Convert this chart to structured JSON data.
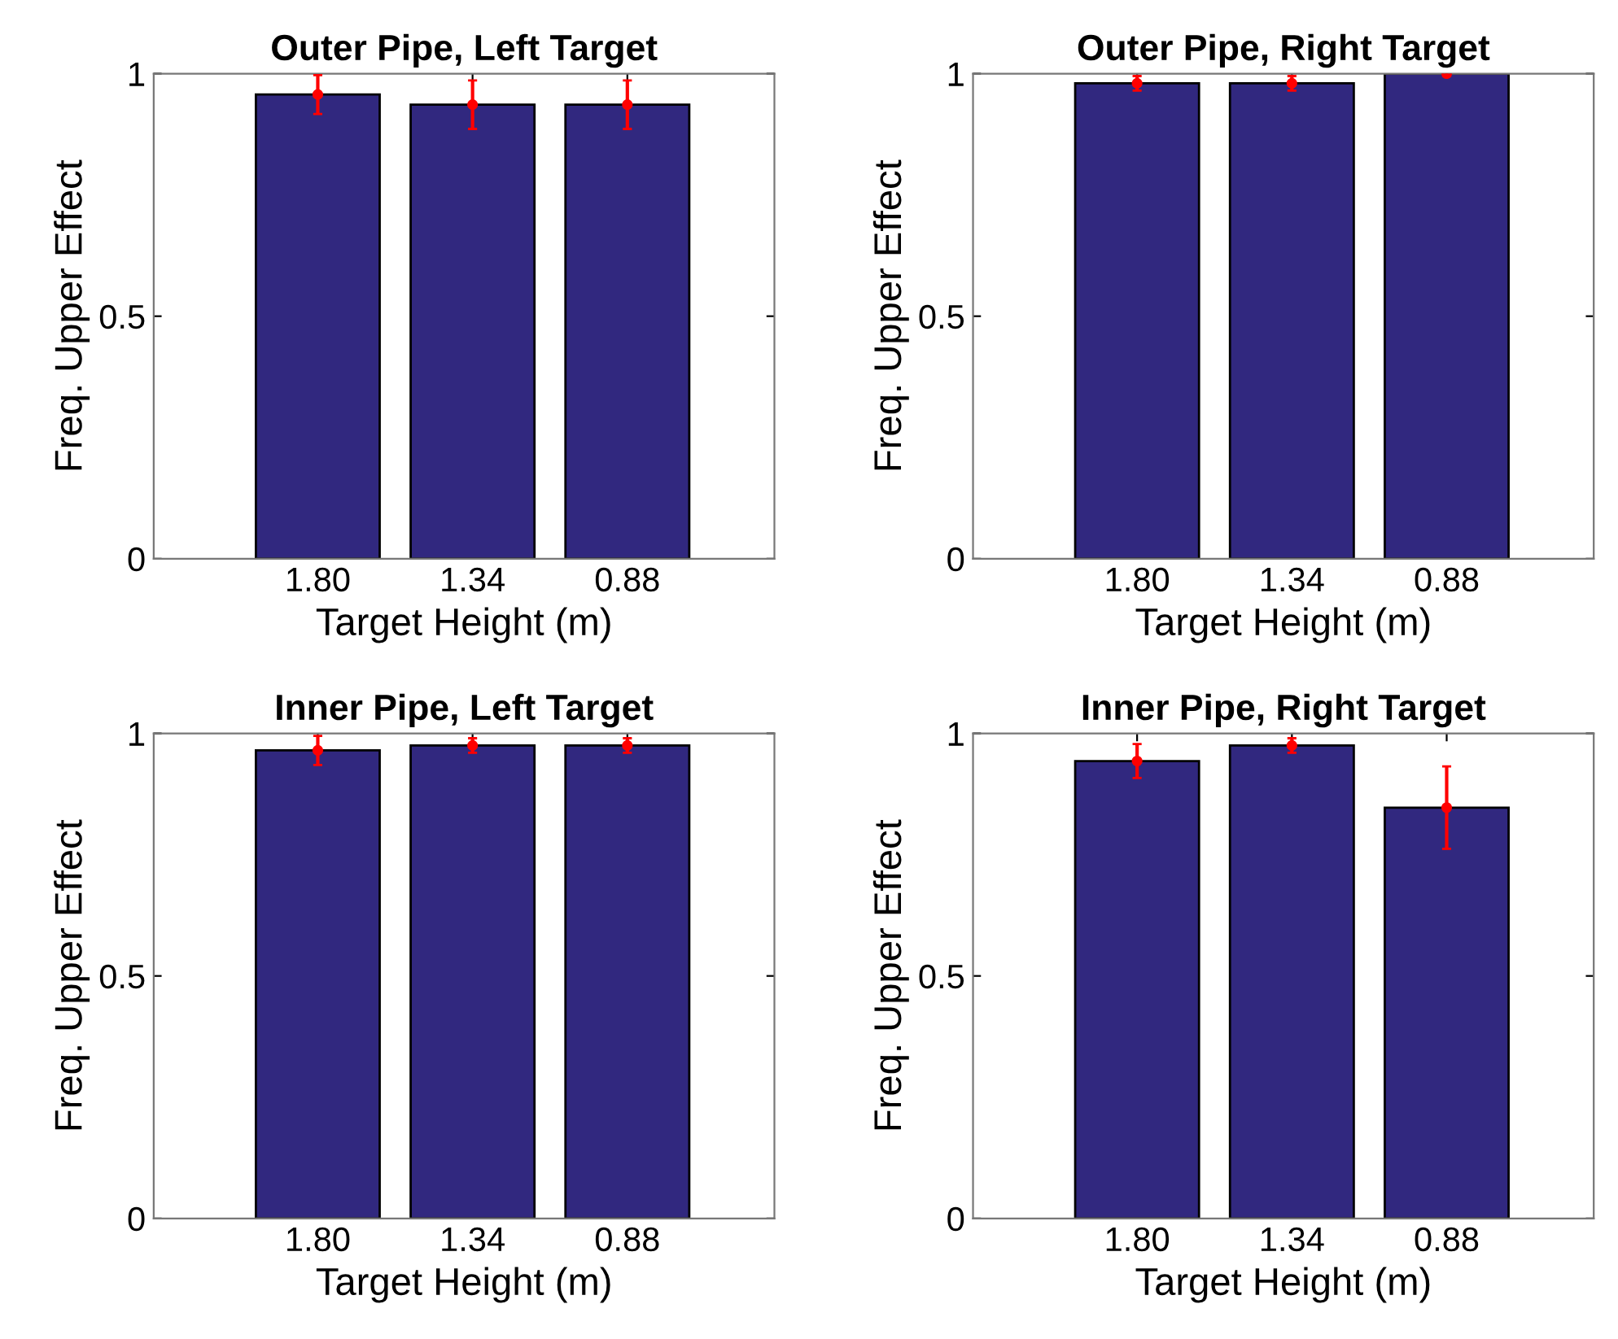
{
  "chart_data": [
    {
      "type": "bar",
      "title": "Outer Pipe, Left Target",
      "xlabel": "Target Height (m)",
      "ylabel": "Freq. Upper Effect",
      "categories": [
        "1.80",
        "1.34",
        "0.88"
      ],
      "ylim": [
        0,
        1
      ],
      "yticks": [
        0,
        0.5,
        1
      ],
      "grid": false,
      "series": [
        {
          "color": "#31287f",
          "values": [
            0.957,
            0.936,
            0.936
          ],
          "errors": [
            0.04,
            0.05,
            0.05
          ]
        },
        {
          "type": "scatter",
          "color": "#ff0000",
          "x": [
            "1.80",
            "1.34",
            "0.88"
          ],
          "values": [
            0.957,
            0.936,
            0.936
          ]
        }
      ]
    },
    {
      "type": "bar",
      "title": "Outer Pipe, Right Target",
      "xlabel": "Target Height (m)",
      "ylabel": "Freq. Upper Effect",
      "categories": [
        "1.80",
        "1.34",
        "0.88"
      ],
      "ylim": [
        0,
        1
      ],
      "yticks": [
        0,
        0.5,
        1
      ],
      "grid": false,
      "series": [
        {
          "color": "#31287f",
          "values": [
            0.98,
            0.98,
            1.0
          ],
          "errors": [
            0.015,
            0.015,
            0.005
          ]
        },
        {
          "type": "scatter",
          "color": "#ff0000",
          "x": [
            "1.80",
            "1.34",
            "0.88"
          ],
          "values": [
            0.98,
            0.98,
            1.0
          ]
        }
      ]
    },
    {
      "type": "bar",
      "title": "Inner Pipe, Left Target",
      "xlabel": "Target Height (m)",
      "ylabel": "Freq. Upper Effect",
      "categories": [
        "1.80",
        "1.34",
        "0.88"
      ],
      "ylim": [
        0,
        1
      ],
      "yticks": [
        0,
        0.5,
        1
      ],
      "grid": false,
      "series": [
        {
          "color": "#31287f",
          "values": [
            0.965,
            0.975,
            0.975
          ],
          "errors": [
            0.03,
            0.015,
            0.015
          ]
        },
        {
          "type": "scatter",
          "color": "#ff0000",
          "x": [
            "1.80",
            "1.34",
            "0.88"
          ],
          "values": [
            0.965,
            0.975,
            0.975
          ]
        }
      ]
    },
    {
      "type": "bar",
      "title": "Inner Pipe, Right Target",
      "xlabel": "Target Height (m)",
      "ylabel": "Freq. Upper Effect",
      "categories": [
        "1.80",
        "1.34",
        "0.88"
      ],
      "ylim": [
        0,
        1
      ],
      "yticks": [
        0,
        0.5,
        1
      ],
      "grid": false,
      "series": [
        {
          "color": "#31287f",
          "values": [
            0.943,
            0.975,
            0.847
          ],
          "errors": [
            0.035,
            0.015,
            0.085
          ]
        },
        {
          "type": "scatter",
          "color": "#ff0000",
          "x": [
            "1.80",
            "1.34",
            "0.88"
          ],
          "values": [
            0.943,
            0.975,
            0.847
          ]
        }
      ]
    }
  ]
}
